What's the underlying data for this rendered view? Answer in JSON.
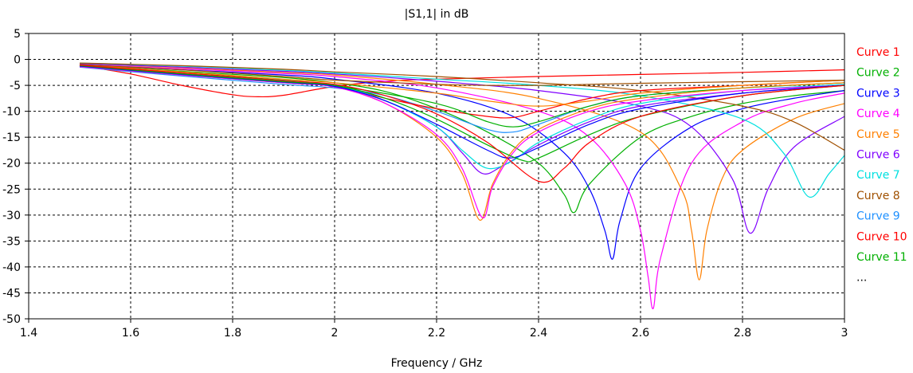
{
  "chart_data": {
    "type": "line",
    "title": "|S1,1| in dB",
    "xlabel": "Frequency / GHz",
    "ylabel": "",
    "xlim": [
      1.4,
      3.0
    ],
    "ylim": [
      -50,
      5
    ],
    "x_ticks": [
      1.4,
      1.6,
      1.8,
      2,
      2.2,
      2.4,
      2.6,
      2.8,
      3
    ],
    "x_tick_labels": [
      "1.4",
      "1.6",
      "1.8",
      "2",
      "2.2",
      "2.4",
      "2.6",
      "2.8",
      "3"
    ],
    "y_ticks": [
      5,
      0,
      -5,
      -10,
      -15,
      -20,
      -25,
      -30,
      -35,
      -40,
      -45,
      -50
    ],
    "y_tick_labels": [
      "5",
      "0",
      "-5",
      "-10",
      "-15",
      "-20",
      "-25",
      "-30",
      "-35",
      "-40",
      "-45",
      "-50"
    ],
    "grid": true,
    "legend_position": "right",
    "legend_more": "...",
    "series": [
      {
        "name": "Curve 1",
        "color": "#ff0000",
        "x": [
          1.5,
          1.6,
          1.7,
          1.8,
          1.85,
          1.9,
          2.0,
          2.1,
          2.2,
          2.4,
          2.6,
          2.8,
          3.0
        ],
        "y": [
          -1.2,
          -2.8,
          -5.0,
          -6.8,
          -7.2,
          -6.9,
          -5.2,
          -4.2,
          -3.8,
          -3.3,
          -2.9,
          -2.5,
          -2.0
        ]
      },
      {
        "name": "Curve 2",
        "color": "#00b000",
        "x": [
          1.5,
          1.7,
          1.9,
          2.0,
          2.1,
          2.2,
          2.3,
          2.4,
          2.45,
          2.47,
          2.5,
          2.6,
          2.7,
          2.8,
          2.9,
          3.0
        ],
        "y": [
          -1.0,
          -2.3,
          -3.5,
          -4.5,
          -6.2,
          -9.5,
          -14.0,
          -20.0,
          -26.0,
          -29.5,
          -24.0,
          -15.0,
          -11.0,
          -8.5,
          -7.0,
          -6.0
        ]
      },
      {
        "name": "Curve 3",
        "color": "#0000ff",
        "x": [
          1.5,
          1.7,
          1.9,
          2.0,
          2.2,
          2.35,
          2.45,
          2.5,
          2.53,
          2.545,
          2.56,
          2.6,
          2.7,
          2.8,
          2.9,
          3.0
        ],
        "y": [
          -1.0,
          -2.0,
          -3.0,
          -3.8,
          -6.5,
          -11.0,
          -18.0,
          -25.0,
          -33.0,
          -38.5,
          -31.0,
          -21.0,
          -13.0,
          -9.5,
          -7.5,
          -6.0
        ]
      },
      {
        "name": "Curve 4",
        "color": "#ff00ff",
        "x": [
          1.5,
          1.7,
          1.9,
          2.0,
          2.2,
          2.4,
          2.5,
          2.57,
          2.6,
          2.615,
          2.625,
          2.64,
          2.7,
          2.8,
          2.9,
          3.0
        ],
        "y": [
          -1.0,
          -1.8,
          -2.7,
          -3.3,
          -5.5,
          -10.0,
          -15.0,
          -24.0,
          -33.0,
          -42.0,
          -48.0,
          -38.0,
          -20.0,
          -12.0,
          -8.5,
          -6.5
        ]
      },
      {
        "name": "Curve 5",
        "color": "#ff8000",
        "x": [
          1.5,
          1.7,
          1.9,
          2.0,
          2.2,
          2.4,
          2.6,
          2.68,
          2.7,
          2.715,
          2.73,
          2.76,
          2.8,
          2.9,
          3.0
        ],
        "y": [
          -0.8,
          -1.6,
          -2.5,
          -3.0,
          -4.8,
          -7.5,
          -14.0,
          -25.0,
          -33.0,
          -42.5,
          -33.0,
          -23.0,
          -17.5,
          -11.5,
          -8.5
        ]
      },
      {
        "name": "Curve 6",
        "color": "#8000ff",
        "x": [
          1.5,
          1.7,
          1.9,
          2.0,
          2.2,
          2.4,
          2.6,
          2.7,
          2.78,
          2.815,
          2.85,
          2.9,
          3.0
        ],
        "y": [
          -0.8,
          -1.5,
          -2.3,
          -2.8,
          -4.2,
          -6.0,
          -9.0,
          -13.0,
          -23.0,
          -33.5,
          -25.0,
          -17.0,
          -11.0
        ]
      },
      {
        "name": "Curve 7",
        "color": "#00e0e0",
        "x": [
          1.5,
          1.7,
          1.9,
          2.0,
          2.2,
          2.4,
          2.6,
          2.8,
          2.88,
          2.93,
          2.97,
          3.0
        ],
        "y": [
          -0.7,
          -1.3,
          -2.1,
          -2.6,
          -3.8,
          -5.0,
          -7.0,
          -11.5,
          -18.0,
          -26.5,
          -22.0,
          -18.5
        ]
      },
      {
        "name": "Curve 8",
        "color": "#a05000",
        "x": [
          1.5,
          1.7,
          1.9,
          2.0,
          2.2,
          2.4,
          2.6,
          2.8,
          2.9,
          3.0
        ],
        "y": [
          -0.7,
          -1.2,
          -1.9,
          -2.4,
          -3.3,
          -4.5,
          -6.0,
          -9.0,
          -12.0,
          -17.5
        ]
      },
      {
        "name": "Curve 9",
        "color": "#1e90ff",
        "x": [
          1.5,
          1.7,
          1.9,
          2.0,
          2.1,
          2.2,
          2.3,
          2.35,
          2.4,
          2.5,
          2.6,
          2.8,
          3.0
        ],
        "y": [
          -1.5,
          -3.2,
          -4.8,
          -5.5,
          -7.0,
          -10.0,
          -13.5,
          -14.0,
          -12.5,
          -9.0,
          -7.0,
          -5.5,
          -4.5
        ]
      },
      {
        "name": "Curve 10",
        "color": "#ff0000",
        "x": [
          1.5,
          1.7,
          1.9,
          2.0,
          2.1,
          2.2,
          2.3,
          2.35,
          2.4,
          2.5,
          2.6,
          2.8,
          3.0
        ],
        "y": [
          -1.3,
          -2.9,
          -4.5,
          -5.2,
          -7.5,
          -9.5,
          -11.0,
          -11.2,
          -10.0,
          -7.5,
          -6.0,
          -5.0,
          -4.0
        ]
      },
      {
        "name": "Curve 11",
        "color": "#00b000",
        "x": [
          1.5,
          1.7,
          1.9,
          2.0,
          2.2,
          2.3,
          2.35,
          2.4,
          2.5,
          2.6,
          2.8,
          3.0
        ],
        "y": [
          -1.2,
          -2.6,
          -4.0,
          -5.0,
          -8.5,
          -12.0,
          -13.0,
          -12.0,
          -9.0,
          -7.0,
          -5.5,
          -4.5
        ]
      },
      {
        "name": "",
        "color": "#ff8000",
        "x": [
          1.5,
          1.7,
          1.9,
          2.0,
          2.2,
          2.3,
          2.4,
          2.5,
          2.6,
          2.8,
          3.0
        ],
        "y": [
          -1.0,
          -2.4,
          -3.8,
          -4.5,
          -6.5,
          -8.0,
          -9.0,
          -8.0,
          -6.5,
          -5.0,
          -4.0
        ]
      },
      {
        "name": "",
        "color": "#a05000",
        "x": [
          1.5,
          1.7,
          1.9,
          2.0,
          2.2,
          2.3,
          2.4,
          2.5,
          2.6,
          2.8,
          3.0
        ],
        "y": [
          -1.0,
          -2.0,
          -3.3,
          -4.0,
          -4.8,
          -5.0,
          -5.0,
          -4.8,
          -4.6,
          -4.3,
          -4.0
        ]
      },
      {
        "name": "",
        "color": "#8000ff",
        "x": [
          1.5,
          1.7,
          1.9,
          2.0,
          2.1,
          2.2,
          2.25,
          2.29,
          2.33,
          2.4,
          2.5,
          2.6,
          2.8,
          3.0
        ],
        "y": [
          -1.3,
          -2.8,
          -4.2,
          -5.0,
          -8.0,
          -13.0,
          -18.0,
          -22.0,
          -20.5,
          -16.5,
          -12.0,
          -9.0,
          -6.5,
          -5.0
        ]
      },
      {
        "name": "",
        "color": "#00e0e0",
        "x": [
          1.5,
          1.7,
          1.9,
          2.0,
          2.1,
          2.2,
          2.25,
          2.3,
          2.35,
          2.4,
          2.5,
          2.6,
          2.8,
          3.0
        ],
        "y": [
          -1.2,
          -2.7,
          -4.1,
          -5.0,
          -8.0,
          -13.0,
          -17.5,
          -21.0,
          -19.5,
          -16.0,
          -11.5,
          -8.5,
          -6.0,
          -4.8
        ]
      },
      {
        "name": "",
        "color": "#ff8000",
        "x": [
          1.5,
          1.7,
          1.9,
          2.0,
          2.1,
          2.2,
          2.25,
          2.285,
          2.31,
          2.35,
          2.4,
          2.5,
          2.6,
          2.8,
          3.0
        ],
        "y": [
          -1.4,
          -3.0,
          -4.5,
          -5.3,
          -8.5,
          -15.0,
          -22.0,
          -31.0,
          -24.0,
          -17.5,
          -13.5,
          -9.5,
          -7.5,
          -5.5,
          -4.5
        ]
      },
      {
        "name": "",
        "color": "#ff00ff",
        "x": [
          1.5,
          1.7,
          1.9,
          2.0,
          2.1,
          2.2,
          2.25,
          2.29,
          2.31,
          2.35,
          2.4,
          2.5,
          2.6,
          2.8,
          3.0
        ],
        "y": [
          -1.4,
          -3.0,
          -4.5,
          -5.3,
          -8.5,
          -14.5,
          -21.0,
          -30.5,
          -24.5,
          -18.0,
          -14.0,
          -10.0,
          -8.0,
          -6.0,
          -5.0
        ]
      },
      {
        "name": "",
        "color": "#0000ff",
        "x": [
          1.5,
          1.7,
          1.9,
          2.0,
          2.1,
          2.2,
          2.3,
          2.345,
          2.4,
          2.5,
          2.6,
          2.8,
          3.0
        ],
        "y": [
          -1.3,
          -2.9,
          -4.4,
          -5.2,
          -8.0,
          -12.5,
          -17.5,
          -19.0,
          -17.0,
          -12.5,
          -9.5,
          -6.5,
          -5.0
        ]
      },
      {
        "name": "",
        "color": "#00b000",
        "x": [
          1.5,
          1.7,
          1.9,
          2.0,
          2.1,
          2.2,
          2.3,
          2.37,
          2.4,
          2.5,
          2.6,
          2.8,
          3.0
        ],
        "y": [
          -1.2,
          -2.8,
          -4.3,
          -5.0,
          -7.5,
          -11.5,
          -16.5,
          -19.5,
          -19.0,
          -14.5,
          -11.0,
          -7.0,
          -5.0
        ]
      },
      {
        "name": "",
        "color": "#ff0000",
        "x": [
          1.5,
          1.7,
          1.9,
          2.0,
          2.1,
          2.2,
          2.3,
          2.4,
          2.45,
          2.5,
          2.6,
          2.8,
          3.0
        ],
        "y": [
          -1.1,
          -2.6,
          -4.1,
          -4.8,
          -7.0,
          -10.5,
          -16.0,
          -23.5,
          -21.0,
          -16.0,
          -11.0,
          -7.0,
          -5.0
        ]
      }
    ]
  }
}
